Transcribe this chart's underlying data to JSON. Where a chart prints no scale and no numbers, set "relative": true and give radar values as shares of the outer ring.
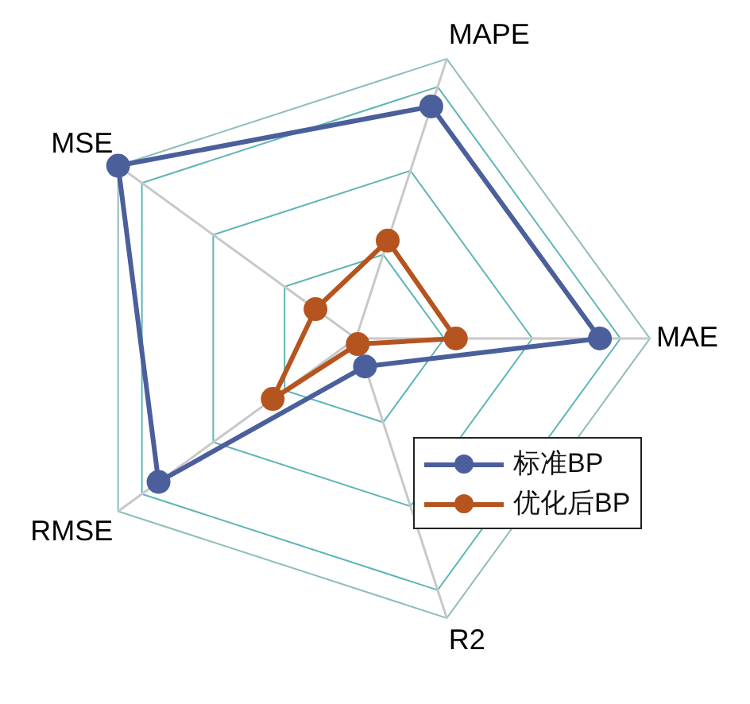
{
  "chart_data": {
    "type": "radar",
    "relative": true,
    "categories": [
      "MAPE",
      "MAE",
      "R2",
      "RMSE",
      "MSE"
    ],
    "series": [
      {
        "name": "标准BP",
        "color": "#4a5f9b",
        "values": [
          0.83,
          0.83,
          0.1,
          0.83,
          1.0
        ]
      },
      {
        "name": "优化后BP",
        "color": "#b5541f",
        "values": [
          0.35,
          0.34,
          0.02,
          0.35,
          0.17
        ]
      }
    ],
    "grid": true,
    "legend": "bottom right",
    "marker": "circle",
    "line_style": "solid"
  }
}
